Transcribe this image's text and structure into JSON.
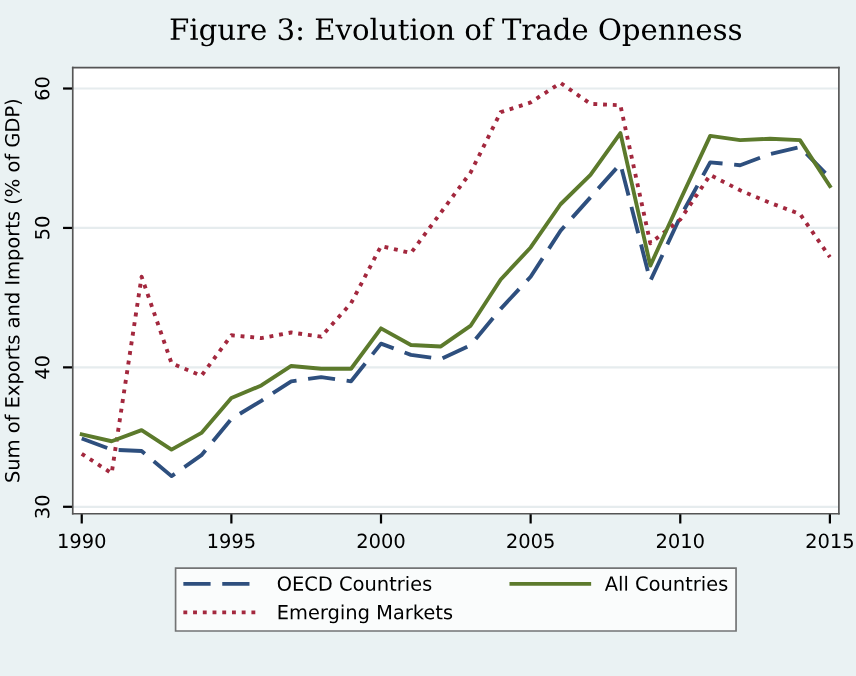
{
  "chart_data": {
    "type": "line",
    "title": "Figure 3: Evolution of Trade Openness",
    "ylabel": "Sum of Exports and Imports (% of GDP)",
    "x": [
      1990,
      1991,
      1992,
      1993,
      1994,
      1995,
      1996,
      1997,
      1998,
      1999,
      2000,
      2001,
      2002,
      2003,
      2004,
      2005,
      2006,
      2007,
      2008,
      2009,
      2010,
      2011,
      2012,
      2013,
      2014,
      2015
    ],
    "series": [
      {
        "name": "OECD Countries",
        "color": "#2e4f7e",
        "line_style": "dashed",
        "values": [
          34.9,
          34.1,
          34.0,
          32.2,
          33.7,
          36.3,
          37.6,
          39.0,
          39.3,
          39.0,
          41.7,
          40.9,
          40.6,
          41.6,
          44.2,
          46.5,
          49.8,
          52.2,
          54.6,
          46.2,
          50.8,
          54.7,
          54.5,
          55.3,
          55.8,
          53.6
        ]
      },
      {
        "name": "Emerging Markets",
        "color": "#a3283e",
        "line_style": "dotted",
        "values": [
          33.8,
          32.4,
          46.5,
          40.3,
          39.4,
          42.3,
          42.1,
          42.5,
          42.2,
          44.6,
          48.7,
          48.2,
          51.1,
          54.0,
          58.3,
          59.0,
          60.4,
          58.9,
          58.8,
          48.9,
          50.6,
          53.8,
          52.7,
          51.8,
          51.0,
          47.9
        ]
      },
      {
        "name": "All Countries",
        "color": "#5c7a2c",
        "line_style": "solid",
        "values": [
          35.2,
          34.7,
          35.5,
          34.1,
          35.3,
          37.8,
          38.7,
          40.1,
          39.9,
          39.9,
          42.8,
          41.6,
          41.5,
          43.0,
          46.3,
          48.6,
          51.7,
          53.8,
          56.8,
          47.3,
          52.0,
          56.6,
          56.3,
          56.4,
          56.3,
          53.0
        ]
      }
    ],
    "xlim": [
      1989.7,
      2015.3
    ],
    "xticks": [
      1990,
      1995,
      2000,
      2005,
      2010,
      2015
    ],
    "ylim": [
      29.5,
      61.5
    ],
    "yticks": [
      30,
      40,
      50,
      60
    ],
    "grid": "y",
    "legend": "bottom",
    "marker": "none"
  }
}
